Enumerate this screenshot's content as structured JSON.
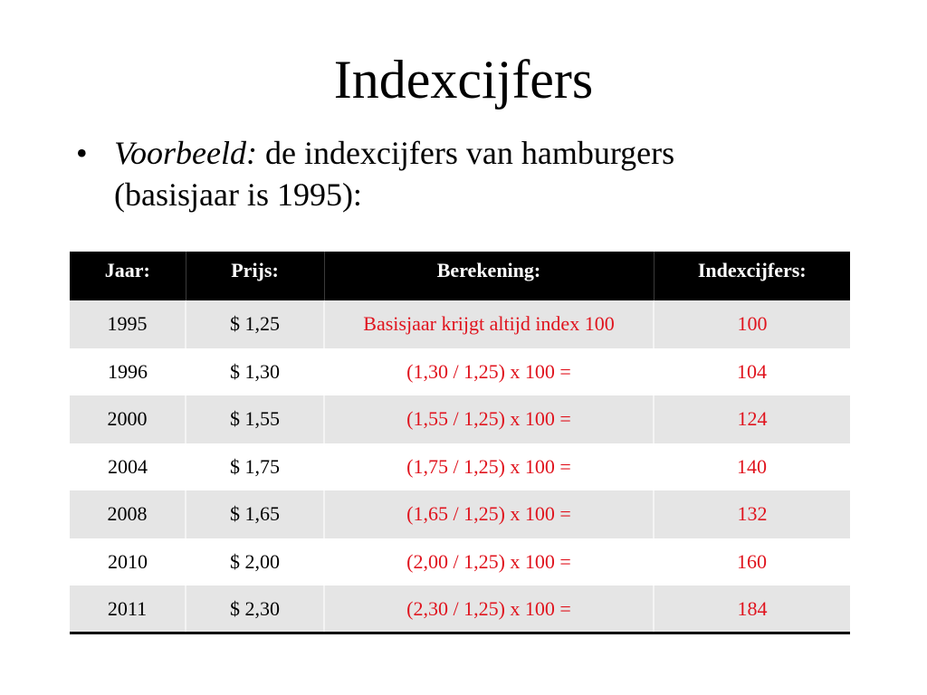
{
  "title": "Indexcijfers",
  "bullet": {
    "marker": "•",
    "italic_label": "Voorbeeld:",
    "line1_rest": " de indexcijfers van hamburgers",
    "line2": "(basisjaar is 1995):"
  },
  "table": {
    "headers": [
      "Jaar:",
      "Prijs:",
      "Berekening:",
      "Indexcijfers:"
    ],
    "rows": [
      {
        "year": "1995",
        "price": "$ 1,25",
        "calc": "Basisjaar krijgt altijd index 100",
        "index": "100"
      },
      {
        "year": "1996",
        "price": "$ 1,30",
        "calc": "(1,30 / 1,25) x 100 =",
        "index": "104"
      },
      {
        "year": "2000",
        "price": "$ 1,55",
        "calc": "(1,55 / 1,25) x 100 =",
        "index": "124"
      },
      {
        "year": "2004",
        "price": "$ 1,75",
        "calc": "(1,75 / 1,25) x 100 =",
        "index": "140"
      },
      {
        "year": "2008",
        "price": "$ 1,65",
        "calc": "(1,65 / 1,25) x 100 =",
        "index": "132"
      },
      {
        "year": "2010",
        "price": "$ 2,00",
        "calc": "(2,00 / 1,25) x 100 =",
        "index": "160"
      },
      {
        "year": "2011",
        "price": "$ 2,30",
        "calc": "(2,30 / 1,25) x 100 =",
        "index": "184"
      }
    ]
  },
  "colors": {
    "header_bg": "#000000",
    "row_shade": "#e5e5e5",
    "highlight_text": "#e0141e"
  }
}
